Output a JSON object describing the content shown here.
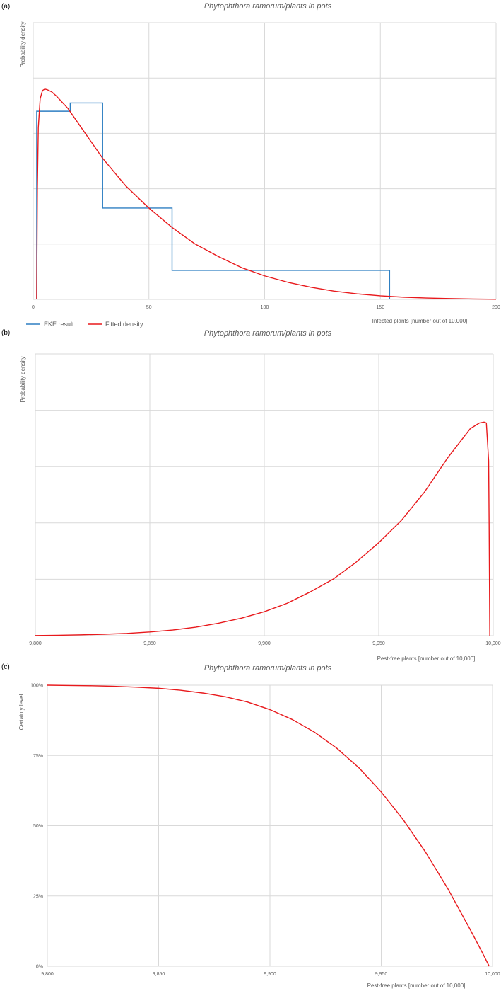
{
  "colors": {
    "ekeLine": "#2e7fc2",
    "fittedLine": "#e8191c",
    "grid": "#d9d9d9",
    "text": "#595959"
  },
  "chart_data": [
    {
      "panel": "(a)",
      "type": "line",
      "title": "Phytophthora ramorum/plants in pots",
      "xlabel": "Infected plants [number out of 10,000]",
      "ylabel": "Probability density",
      "xlim": [
        0,
        200
      ],
      "ylim": [
        0,
        1
      ],
      "xticks": [
        0,
        50,
        100,
        150,
        200
      ],
      "xtick_labels": [
        "0",
        "50",
        "100",
        "150",
        "200"
      ],
      "yticks": [
        0,
        0.2,
        0.4,
        0.6,
        0.8,
        1.0
      ],
      "grid": true,
      "legend": {
        "placement": "bottom-left",
        "entries": [
          "EKE result",
          "Fitted density"
        ]
      },
      "series": [
        {
          "name": "EKE result",
          "color": "#2e7fc2",
          "step": true,
          "x": [
            1.5,
            1.5,
            16,
            16,
            30,
            30,
            60,
            60,
            154,
            154
          ],
          "y": [
            0,
            0.68,
            0.68,
            0.71,
            0.71,
            0.33,
            0.33,
            0.105,
            0.105,
            0
          ]
        },
        {
          "name": "Fitted density",
          "color": "#e8191c",
          "x": [
            1.5,
            1.8,
            2.2,
            3,
            4,
            5,
            6,
            8,
            10,
            15,
            20,
            25,
            30,
            40,
            50,
            60,
            70,
            80,
            90,
            100,
            110,
            120,
            130,
            140,
            150,
            160,
            170,
            180,
            190,
            200
          ],
          "y": [
            0,
            0.4,
            0.62,
            0.725,
            0.755,
            0.76,
            0.758,
            0.75,
            0.735,
            0.69,
            0.63,
            0.57,
            0.51,
            0.41,
            0.33,
            0.26,
            0.2,
            0.155,
            0.115,
            0.085,
            0.062,
            0.044,
            0.03,
            0.02,
            0.013,
            0.008,
            0.005,
            0.003,
            0.0015,
            0.0005
          ]
        }
      ]
    },
    {
      "panel": "(b)",
      "type": "line",
      "title": "Phytophthora ramorum/plants in pots",
      "xlabel": "Pest-free plants [number out of 10,000]",
      "ylabel": "Probability density",
      "xlim": [
        9800,
        10000
      ],
      "ylim": [
        0,
        1
      ],
      "xticks": [
        9800,
        9850,
        9900,
        9950,
        10000
      ],
      "xtick_labels": [
        "9,800",
        "9,850",
        "9,900",
        "9,950",
        "10,000"
      ],
      "yticks": [
        0,
        0.2,
        0.4,
        0.6,
        0.8,
        1.0
      ],
      "grid": true,
      "series": [
        {
          "name": "",
          "color": "#e8191c",
          "x": [
            9800,
            9810,
            9820,
            9830,
            9840,
            9850,
            9860,
            9870,
            9880,
            9890,
            9900,
            9910,
            9920,
            9930,
            9940,
            9950,
            9960,
            9970,
            9980,
            9990,
            9994,
            9996,
            9997,
            9998,
            9998.2,
            9998.5
          ],
          "y": [
            0.0005,
            0.0015,
            0.003,
            0.005,
            0.008,
            0.013,
            0.02,
            0.03,
            0.044,
            0.062,
            0.085,
            0.115,
            0.155,
            0.2,
            0.26,
            0.33,
            0.41,
            0.51,
            0.63,
            0.735,
            0.755,
            0.758,
            0.755,
            0.62,
            0.4,
            0
          ]
        }
      ]
    },
    {
      "panel": "(c)",
      "type": "line",
      "title": "Phytophthora ramorum/plants in pots",
      "xlabel": "Pest-free plants [number out of 10,000]",
      "ylabel": "Certainty level",
      "xlim": [
        9800,
        10000
      ],
      "ylim": [
        0,
        100
      ],
      "xticks": [
        9800,
        9850,
        9900,
        9950,
        10000
      ],
      "xtick_labels": [
        "9,800",
        "9,850",
        "9,900",
        "9,950",
        "10,000"
      ],
      "yticks": [
        0,
        25,
        50,
        75,
        100
      ],
      "ytick_labels": [
        "0%",
        "25%",
        "50%",
        "75%",
        "100%"
      ],
      "grid": true,
      "series": [
        {
          "name": "",
          "color": "#e8191c",
          "x": [
            9800,
            9810,
            9820,
            9830,
            9840,
            9850,
            9860,
            9870,
            9880,
            9890,
            9900,
            9910,
            9920,
            9930,
            9940,
            9950,
            9960,
            9970,
            9980,
            9990,
            9995,
            9998.5
          ],
          "y": [
            100,
            99.9,
            99.8,
            99.6,
            99.3,
            98.9,
            98.2,
            97.2,
            95.9,
            94,
            91.3,
            87.8,
            83.3,
            77.6,
            70.6,
            62,
            52,
            40.5,
            27.5,
            13,
            5.5,
            0
          ]
        }
      ]
    }
  ]
}
